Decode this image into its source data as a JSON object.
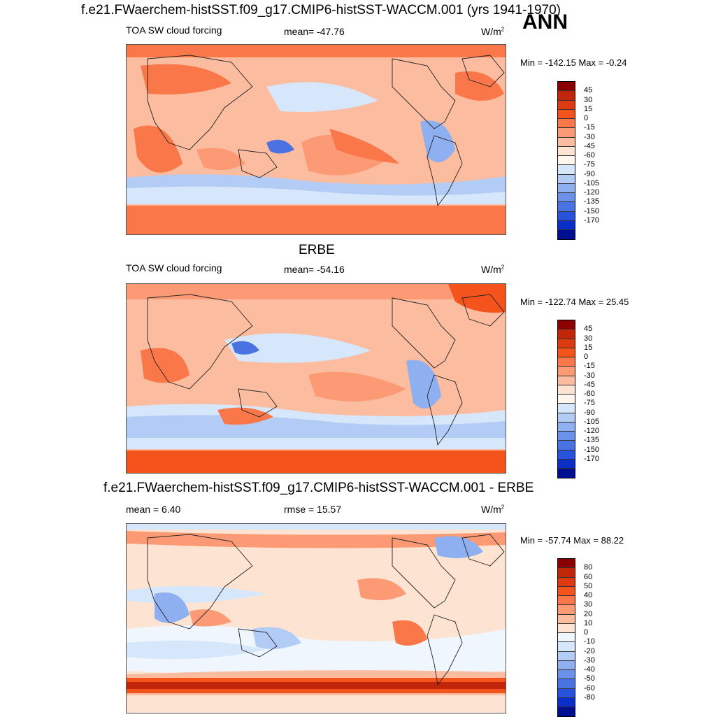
{
  "top": {
    "title": "f.e21.FWaerchem-histSST.f09_g17.CMIP6-histSST-WACCM.001 (yrs 1941-1970)",
    "season": "ANN",
    "left_label": "TOA SW cloud forcing",
    "mean": "mean= -47.76",
    "units_base": "W/m",
    "units_sup": "2",
    "minmax": "Min = -142.15 Max =  -0.24"
  },
  "middle": {
    "title": "ERBE",
    "left_label": "TOA SW cloud forcing",
    "mean": "mean= -54.16",
    "units_base": "W/m",
    "units_sup": "2",
    "minmax": "Min = -122.74 Max =  25.45"
  },
  "bottom": {
    "title": "f.e21.FWaerchem-histSST.f09_g17.CMIP6-histSST-WACCM.001 - ERBE",
    "mean": "mean =   6.40",
    "rmse": "rmse =  15.57",
    "units_base": "W/m",
    "units_sup": "2",
    "minmax": "Min = -57.74 Max =  88.22"
  },
  "colorbar_abs": {
    "labels": [
      "45",
      "30",
      "15",
      "0",
      "-15",
      "-30",
      "-45",
      "-60",
      "-75",
      "-90",
      "-105",
      "-120",
      "-135",
      "-150",
      "-170"
    ],
    "colors": [
      "#8b0000",
      "#c1260b",
      "#de3a12",
      "#f4541c",
      "#f97748",
      "#fb9a74",
      "#fcbc9f",
      "#fde3d2",
      "#fff7ee",
      "#d6e6fb",
      "#b3ccf6",
      "#8fb0f0",
      "#6c91ea",
      "#4a72e3",
      "#2852dc",
      "#0a2fc8",
      "#000f8f"
    ]
  },
  "colorbar_diff": {
    "labels": [
      "80",
      "60",
      "50",
      "40",
      "30",
      "20",
      "10",
      "0",
      "-10",
      "-20",
      "-30",
      "-40",
      "-50",
      "-60",
      "-80"
    ],
    "colors": [
      "#8b0000",
      "#c1260b",
      "#de3a12",
      "#f4541c",
      "#f97748",
      "#fb9a74",
      "#fcbc9f",
      "#fde3d2",
      "#f0f6fe",
      "#d6e6fb",
      "#b3ccf6",
      "#8fb0f0",
      "#6c91ea",
      "#4a72e3",
      "#2852dc",
      "#0a2fc8",
      "#000f8f"
    ]
  }
}
